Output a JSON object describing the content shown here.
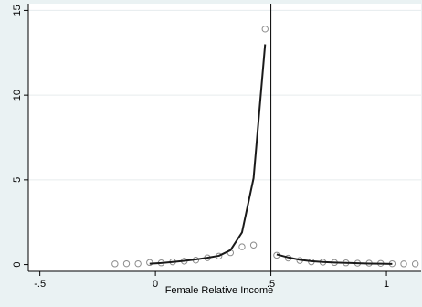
{
  "chart_data": {
    "type": "scatter",
    "xlabel": "Female Relative Income",
    "ylabel": "",
    "xlim": [
      -0.55,
      1.15
    ],
    "ylim": [
      -0.4,
      15.4
    ],
    "x_ticks": [
      {
        "value": -0.5,
        "label": "-.5"
      },
      {
        "value": 0,
        "label": "0"
      },
      {
        "value": 0.5,
        "label": ".5"
      },
      {
        "value": 1,
        "label": "1"
      }
    ],
    "y_ticks": [
      {
        "value": 0,
        "label": "0"
      },
      {
        "value": 5,
        "label": "5"
      },
      {
        "value": 10,
        "label": "10"
      },
      {
        "value": 15,
        "label": "15"
      }
    ],
    "gridlines_y": [
      5,
      10,
      15
    ],
    "vertical_line_x": 0.5,
    "series": [
      {
        "kind": "points",
        "marker": "hollow-circle",
        "x": [
          -0.175,
          -0.125,
          -0.075,
          -0.025,
          0.025,
          0.075,
          0.125,
          0.175,
          0.225,
          0.275,
          0.325,
          0.375,
          0.425,
          0.475,
          0.525,
          0.575,
          0.625,
          0.675,
          0.725,
          0.775,
          0.825,
          0.875,
          0.925,
          0.975,
          1.025,
          1.075,
          1.125
        ],
        "y": [
          0.04,
          0.05,
          0.05,
          0.12,
          0.1,
          0.16,
          0.2,
          0.26,
          0.4,
          0.5,
          0.7,
          1.05,
          1.15,
          13.9,
          0.55,
          0.38,
          0.24,
          0.16,
          0.14,
          0.12,
          0.1,
          0.08,
          0.08,
          0.07,
          0.05,
          0.04,
          0.04
        ]
      },
      {
        "kind": "line",
        "segment": "left",
        "x": [
          -0.025,
          0.025,
          0.075,
          0.125,
          0.175,
          0.225,
          0.275,
          0.325,
          0.375,
          0.425,
          0.475
        ],
        "y": [
          0.05,
          0.09,
          0.15,
          0.22,
          0.3,
          0.4,
          0.52,
          0.85,
          1.9,
          5.1,
          13.0
        ]
      },
      {
        "kind": "line",
        "segment": "right",
        "x": [
          0.525,
          0.575,
          0.625,
          0.675,
          0.725,
          0.775,
          0.825,
          0.875,
          0.925,
          0.975,
          1.025
        ],
        "y": [
          0.6,
          0.42,
          0.28,
          0.2,
          0.15,
          0.12,
          0.1,
          0.08,
          0.06,
          0.05,
          0.04
        ]
      }
    ],
    "colors": {
      "outer_background": "#eaf2f3",
      "plot_background": "#ffffff",
      "gridline": "#e6ecee",
      "line": "#1a1a1a",
      "marker": "#8c8c8c",
      "axis": "#000000"
    }
  }
}
